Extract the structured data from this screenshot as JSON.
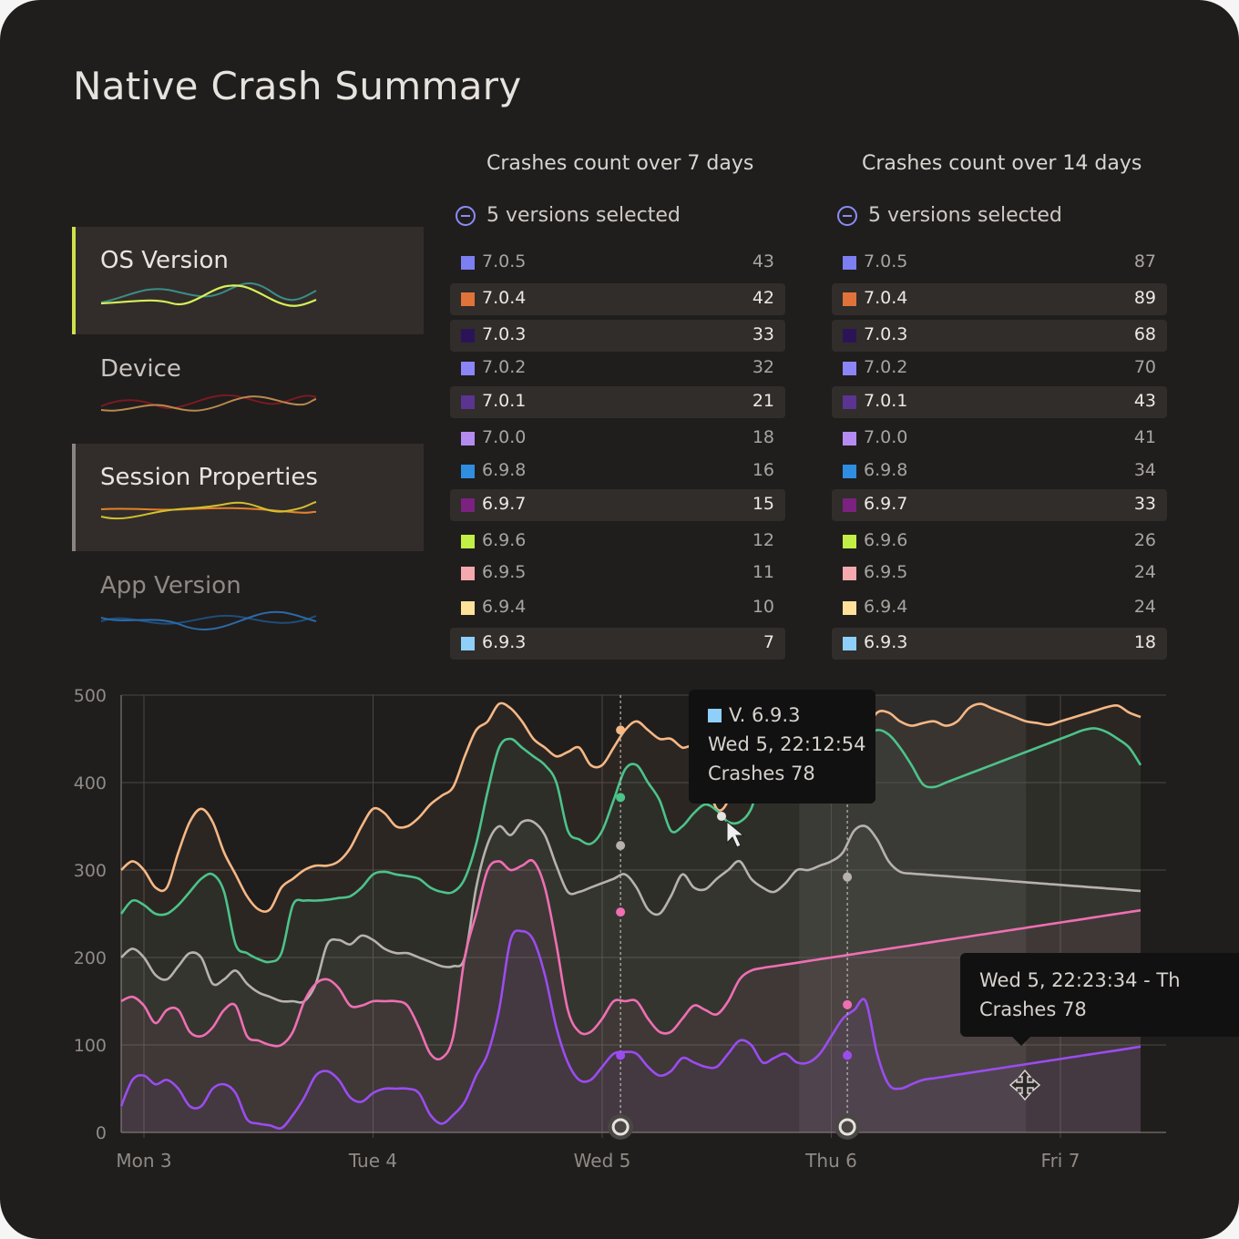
{
  "title": "Native Crash Summary",
  "categories": [
    {
      "label": "OS Version",
      "active": true,
      "accent": "#cfe04a"
    },
    {
      "label": "Device",
      "active": false,
      "accent": ""
    },
    {
      "label": "Session Properties",
      "active": true,
      "accent": "#8a8580"
    },
    {
      "label": "App Version",
      "active": false,
      "accent": ""
    }
  ],
  "table7": {
    "title": "Crashes count over 7 days",
    "selection": "5 versions selected",
    "rows": [
      {
        "version": "7.0.5",
        "count": "43",
        "color": "#7b7ff2",
        "selected": false
      },
      {
        "version": "7.0.4",
        "count": "42",
        "color": "#e0733a",
        "selected": true
      },
      {
        "version": "7.0.3",
        "count": "33",
        "color": "#2c1358",
        "selected": true
      },
      {
        "version": "7.0.2",
        "count": "32",
        "color": "#8b85f7",
        "selected": false
      },
      {
        "version": "7.0.1",
        "count": "21",
        "color": "#5b3492",
        "selected": true
      },
      {
        "version": "7.0.0",
        "count": "18",
        "color": "#b48cf0",
        "selected": false
      },
      {
        "version": "6.9.8",
        "count": "16",
        "color": "#2f8ee0",
        "selected": false
      },
      {
        "version": "6.9.7",
        "count": "15",
        "color": "#7b2180",
        "selected": true
      },
      {
        "version": "6.9.6",
        "count": "12",
        "color": "#c2ef45",
        "selected": false
      },
      {
        "version": "6.9.5",
        "count": "11",
        "color": "#f3a9ae",
        "selected": false
      },
      {
        "version": "6.9.4",
        "count": "10",
        "color": "#fde19a",
        "selected": false
      },
      {
        "version": "6.9.3",
        "count": "7",
        "color": "#8fd0fa",
        "selected": true
      }
    ]
  },
  "table14": {
    "title": "Crashes count over 14 days",
    "selection": "5 versions selected",
    "rows": [
      {
        "version": "7.0.5",
        "count": "87",
        "color": "#7b7ff2",
        "selected": false
      },
      {
        "version": "7.0.4",
        "count": "89",
        "color": "#e0733a",
        "selected": true
      },
      {
        "version": "7.0.3",
        "count": "68",
        "color": "#2c1358",
        "selected": true
      },
      {
        "version": "7.0.2",
        "count": "70",
        "color": "#8b85f7",
        "selected": false
      },
      {
        "version": "7.0.1",
        "count": "43",
        "color": "#5b3492",
        "selected": true
      },
      {
        "version": "7.0.0",
        "count": "41",
        "color": "#b48cf0",
        "selected": false
      },
      {
        "version": "6.9.8",
        "count": "34",
        "color": "#2f8ee0",
        "selected": false
      },
      {
        "version": "6.9.7",
        "count": "33",
        "color": "#7b2180",
        "selected": true
      },
      {
        "version": "6.9.6",
        "count": "26",
        "color": "#c2ef45",
        "selected": false
      },
      {
        "version": "6.9.5",
        "count": "24",
        "color": "#f3a9ae",
        "selected": false
      },
      {
        "version": "6.9.4",
        "count": "24",
        "color": "#fde19a",
        "selected": false
      },
      {
        "version": "6.9.3",
        "count": "18",
        "color": "#8fd0fa",
        "selected": true
      }
    ]
  },
  "tooltip1": {
    "line1": "V. 6.9.3",
    "line2": "Wed 5, 22:12:54",
    "line3": "Crashes 78",
    "swatch": "#8fd0fa"
  },
  "tooltip2": {
    "line1": "Wed 5, 22:23:34 - Th",
    "line2": "Crashes 78"
  },
  "chart_data": {
    "type": "area",
    "x_tick_labels": [
      "Mon 3",
      "Tue 4",
      "Wed 5",
      "Thu 6",
      "Fri 7"
    ],
    "y_ticks": [
      0,
      100,
      200,
      300,
      400,
      500
    ],
    "ylim": [
      0,
      500
    ],
    "xlim": [
      -0.1,
      4.55
    ],
    "grid": true,
    "x": [
      -0.1,
      -0.05,
      0.0,
      0.05,
      0.1,
      0.15,
      0.2,
      0.25,
      0.3,
      0.35,
      0.4,
      0.45,
      0.5,
      0.55,
      0.6,
      0.65,
      0.7,
      0.75,
      0.8,
      0.85,
      0.9,
      0.95,
      1.0,
      1.05,
      1.1,
      1.15,
      1.2,
      1.25,
      1.3,
      1.35,
      1.4,
      1.45,
      1.5,
      1.55,
      1.6,
      1.65,
      1.7,
      1.75,
      1.8,
      1.85,
      1.9,
      1.95,
      2.0,
      2.05,
      2.1,
      2.15,
      2.2,
      2.25,
      2.3,
      2.35,
      2.4,
      2.45,
      2.5,
      2.55,
      2.6,
      2.65,
      2.7,
      2.75,
      2.8,
      2.85,
      2.9,
      2.95,
      3.0,
      3.05,
      3.1,
      3.15,
      3.2,
      3.25,
      3.3,
      3.35,
      3.4,
      3.45,
      3.5,
      3.55,
      3.6,
      3.65,
      3.7,
      3.75,
      3.8,
      3.85,
      3.9,
      3.95,
      4.0,
      4.05,
      4.1,
      4.15,
      4.2,
      4.25,
      4.3,
      4.35,
      4.4,
      4.45,
      4.5,
      4.55
    ],
    "series": [
      {
        "color": "#f6b885",
        "values": [
          300,
          310,
          300,
          280,
          280,
          320,
          355,
          370,
          355,
          320,
          295,
          270,
          255,
          255,
          280,
          290,
          300,
          305,
          305,
          310,
          325,
          350,
          370,
          365,
          350,
          350,
          360,
          375,
          385,
          395,
          430,
          460,
          470,
          490,
          485,
          470,
          450,
          440,
          430,
          435,
          440,
          420,
          420,
          440,
          460,
          470,
          460,
          450,
          450,
          440,
          440,
          410,
          370,
          380,
          430,
          455,
          460,
          462,
          455,
          460,
          465,
          470,
          475,
          450,
          450,
          460,
          480,
          480,
          470,
          465,
          468,
          470,
          465,
          470,
          485,
          490,
          485,
          480,
          475,
          470,
          468,
          466,
          470,
          474,
          478,
          482,
          486,
          488,
          480,
          475,
          470,
          468,
          467,
          466
        ]
      },
      {
        "color": "#4cc38a",
        "values": [
          250,
          265,
          260,
          250,
          250,
          260,
          275,
          290,
          295,
          275,
          215,
          205,
          198,
          195,
          205,
          260,
          265,
          265,
          266,
          268,
          270,
          280,
          295,
          298,
          295,
          293,
          290,
          280,
          275,
          275,
          290,
          330,
          390,
          440,
          450,
          440,
          430,
          420,
          400,
          345,
          335,
          330,
          345,
          380,
          415,
          420,
          400,
          380,
          345,
          350,
          365,
          375,
          368,
          355,
          355,
          370,
          410,
          415,
          395,
          380,
          385,
          400,
          405,
          410,
          420,
          450,
          460,
          455,
          440,
          420,
          398,
          395,
          400,
          405,
          410,
          415,
          420,
          425,
          430,
          435,
          440,
          445,
          450,
          455,
          460,
          462,
          458,
          450,
          440,
          420,
          400,
          398,
          397,
          396
        ]
      },
      {
        "color": "#b7b2ad",
        "values": [
          200,
          210,
          200,
          180,
          175,
          190,
          205,
          200,
          170,
          175,
          185,
          170,
          160,
          155,
          150,
          150,
          150,
          170,
          215,
          220,
          215,
          225,
          220,
          210,
          205,
          205,
          200,
          195,
          190,
          190,
          200,
          280,
          330,
          350,
          340,
          355,
          355,
          340,
          305,
          275,
          275,
          280,
          285,
          290,
          295,
          280,
          255,
          250,
          270,
          295,
          280,
          278,
          290,
          300,
          310,
          290,
          280,
          275,
          285,
          300,
          300,
          305,
          310,
          320,
          345,
          350,
          335,
          310,
          298,
          296,
          295,
          294,
          293,
          292,
          291,
          290,
          289,
          288,
          287,
          286,
          285,
          284,
          283,
          282,
          281,
          280,
          279,
          278,
          277,
          276,
          275,
          274,
          273,
          272
        ]
      },
      {
        "color": "#ef6fb3",
        "values": [
          150,
          155,
          145,
          125,
          140,
          140,
          115,
          110,
          120,
          140,
          145,
          110,
          105,
          100,
          100,
          115,
          150,
          170,
          175,
          165,
          145,
          145,
          150,
          150,
          150,
          145,
          120,
          90,
          85,
          110,
          200,
          250,
          300,
          310,
          300,
          305,
          310,
          280,
          215,
          140,
          115,
          115,
          130,
          150,
          150,
          150,
          130,
          115,
          115,
          130,
          145,
          140,
          135,
          150,
          175,
          185,
          188,
          190,
          192,
          194,
          196,
          198,
          200,
          202,
          204,
          206,
          208,
          210,
          212,
          214,
          216,
          218,
          220,
          222,
          224,
          226,
          228,
          230,
          232,
          234,
          236,
          238,
          240,
          242,
          244,
          246,
          248,
          250,
          252,
          254,
          256,
          258,
          260,
          262
        ]
      },
      {
        "color": "#9b4cf0",
        "values": [
          30,
          60,
          65,
          55,
          60,
          50,
          30,
          30,
          50,
          55,
          45,
          15,
          10,
          8,
          5,
          20,
          40,
          65,
          70,
          60,
          40,
          35,
          45,
          50,
          50,
          50,
          45,
          20,
          10,
          20,
          35,
          65,
          90,
          140,
          220,
          230,
          220,
          180,
          120,
          80,
          60,
          60,
          75,
          90,
          92,
          90,
          75,
          65,
          70,
          85,
          80,
          75,
          75,
          90,
          105,
          100,
          80,
          85,
          90,
          80,
          80,
          90,
          110,
          130,
          140,
          150,
          90,
          55,
          50,
          55,
          60,
          62,
          64,
          66,
          68,
          70,
          72,
          74,
          76,
          78,
          80,
          82,
          84,
          86,
          88,
          90,
          92,
          94,
          96,
          98,
          100,
          102,
          104,
          106
        ]
      }
    ],
    "markers": [
      {
        "x": 2.08,
        "values": [
          460,
          383,
          328,
          252,
          88
        ]
      },
      {
        "x": 3.07,
        "values": [
          292,
          146,
          88
        ]
      }
    ]
  }
}
